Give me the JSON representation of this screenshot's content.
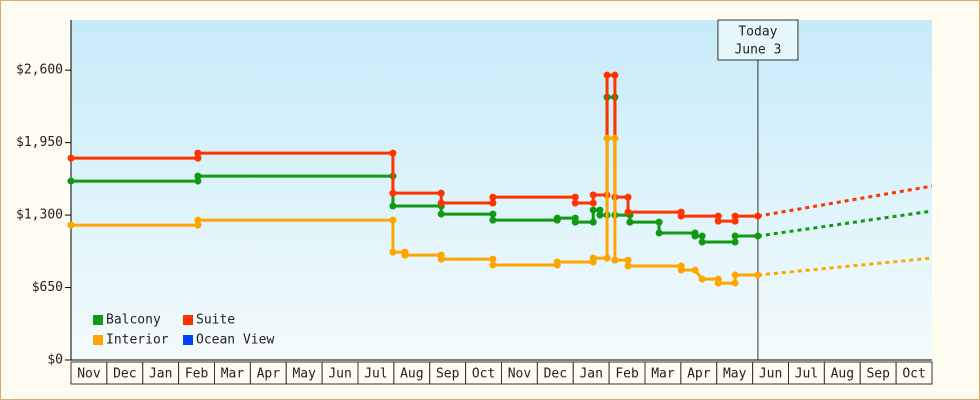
{
  "chart_data": {
    "type": "line",
    "step": true,
    "categories": [
      "Nov",
      "Dec",
      "Jan",
      "Feb",
      "Mar",
      "Apr",
      "May",
      "Jun",
      "Jul",
      "Aug",
      "Sep",
      "Oct",
      "Nov",
      "Dec",
      "Jan",
      "Feb",
      "Mar",
      "Apr",
      "May",
      "Jun",
      "Jul",
      "Aug",
      "Sep",
      "Oct"
    ],
    "xlim": [
      0,
      23
    ],
    "ylim": [
      0,
      3050
    ],
    "yticks": [
      {
        "value": 0,
        "label": "$0"
      },
      {
        "value": 650,
        "label": "$650"
      },
      {
        "value": 1300,
        "label": "$1,300"
      },
      {
        "value": 1950,
        "label": "$1,950"
      },
      {
        "value": 2600,
        "label": "$2,600"
      }
    ],
    "legend": "lower left",
    "today": {
      "x": 18.35,
      "label": [
        "Today",
        "June 3"
      ]
    },
    "forecast_x": [
      18.35,
      23
    ],
    "series": [
      {
        "name": "Balcony",
        "color": "#119911",
        "x": [
          0,
          3.39,
          3.39,
          8.6,
          8.6,
          9.89,
          9.89,
          11.27,
          11.27,
          12.99,
          12.99,
          13.47,
          13.47,
          13.95,
          13.95,
          14.13,
          14.13,
          14.32,
          14.32,
          14.53,
          14.53,
          14.93,
          14.93,
          15.71,
          15.71,
          16.67,
          16.67,
          16.86,
          16.86,
          17.74,
          17.74,
          18.35
        ],
        "values": [
          1605,
          1605,
          1650,
          1650,
          1381,
          1381,
          1309,
          1309,
          1255,
          1255,
          1273,
          1273,
          1237,
          1237,
          1345,
          1345,
          1300,
          1300,
          2358,
          2358,
          1300,
          1300,
          1237,
          1237,
          1139,
          1139,
          1112,
          1112,
          1058,
          1058,
          1112,
          1112
        ],
        "forecast": [
          1112,
          1336
        ]
      },
      {
        "name": "Suite",
        "color": "#ff3300",
        "x": [
          0,
          3.39,
          3.39,
          8.6,
          8.6,
          9.89,
          9.89,
          11.27,
          11.27,
          13.47,
          13.47,
          13.95,
          13.95,
          14.32,
          14.32,
          14.53,
          14.53,
          14.88,
          14.88,
          16.3,
          16.3,
          17.29,
          17.29,
          17.74,
          17.74,
          18.35
        ],
        "values": [
          1811,
          1811,
          1856,
          1856,
          1497,
          1497,
          1408,
          1408,
          1461,
          1461,
          1408,
          1408,
          1480,
          1480,
          2555,
          2555,
          1461,
          1461,
          1327,
          1327,
          1291,
          1291,
          1246,
          1246,
          1291,
          1291
        ],
        "forecast": [
          1291,
          1560
        ]
      },
      {
        "name": "Interior",
        "color": "#ffa500",
        "x": [
          0,
          3.39,
          3.39,
          8.6,
          8.6,
          8.92,
          8.92,
          9.89,
          9.89,
          11.27,
          11.27,
          12.99,
          12.99,
          13.95,
          13.95,
          14.32,
          14.32,
          14.53,
          14.53,
          14.88,
          14.88,
          16.3,
          16.3,
          16.67,
          16.86,
          17.29,
          17.29,
          17.74,
          17.74,
          18.35
        ],
        "values": [
          1210,
          1210,
          1255,
          1255,
          968,
          968,
          941,
          941,
          905,
          905,
          852,
          852,
          879,
          879,
          914,
          914,
          1990,
          1990,
          896,
          896,
          843,
          843,
          807,
          807,
          726,
          726,
          690,
          690,
          762,
          762
        ],
        "forecast": [
          762,
          914
        ]
      },
      {
        "name": "Ocean View",
        "color": "#0044ff",
        "x": [],
        "values": []
      }
    ]
  }
}
